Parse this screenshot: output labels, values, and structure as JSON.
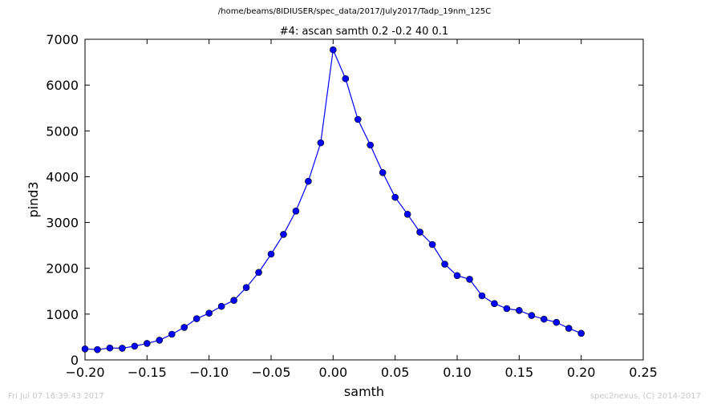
{
  "header": {
    "suptitle": "/home/beams/8IDIUSER/spec_data/2017/July2017/Tadp_19nm_125C"
  },
  "footer": {
    "left": "Fri Jul 07 16:39:43 2017",
    "right": "spec2nexus, (C) 2014-2017"
  },
  "chart_data": {
    "type": "line",
    "title": "#4: ascan  samth 0.2 -0.2  40 0.1",
    "xlabel": "samth",
    "ylabel": "pind3",
    "xlim": [
      -0.2,
      0.25
    ],
    "ylim": [
      0,
      7000
    ],
    "xticks": [
      -0.2,
      -0.15,
      -0.1,
      -0.05,
      0.0,
      0.05,
      0.1,
      0.15,
      0.2,
      0.25
    ],
    "xtick_labels": [
      "−0.20",
      "−0.15",
      "−0.10",
      "−0.05",
      "0.00",
      "0.05",
      "0.10",
      "0.15",
      "0.20",
      "0.25"
    ],
    "yticks": [
      0,
      1000,
      2000,
      3000,
      4000,
      5000,
      6000,
      7000
    ],
    "ytick_labels": [
      "0",
      "1000",
      "2000",
      "3000",
      "4000",
      "5000",
      "6000",
      "7000"
    ],
    "grid": false,
    "color": "#0000ff",
    "marker": "circle",
    "series": [
      {
        "x": [
          -0.2,
          -0.19,
          -0.18,
          -0.17,
          -0.16,
          -0.15,
          -0.14,
          -0.13,
          -0.12,
          -0.11,
          -0.1,
          -0.09,
          -0.08,
          -0.07,
          -0.06,
          -0.05,
          -0.04,
          -0.03,
          -0.02,
          -0.01,
          0.0,
          0.01,
          0.02,
          0.03,
          0.04,
          0.05,
          0.06,
          0.07,
          0.08,
          0.09,
          0.1,
          0.11,
          0.12,
          0.13,
          0.14,
          0.15,
          0.16,
          0.17,
          0.18,
          0.19,
          0.2
        ],
        "y": [
          240,
          225,
          260,
          255,
          300,
          360,
          430,
          560,
          710,
          900,
          1020,
          1170,
          1300,
          1580,
          1910,
          2310,
          2740,
          3250,
          3900,
          4740,
          6770,
          6140,
          5250,
          4690,
          4090,
          3550,
          3180,
          2790,
          2520,
          2090,
          1840,
          1760,
          1400,
          1230,
          1120,
          1080,
          970,
          890,
          820,
          690,
          580
        ]
      }
    ]
  }
}
